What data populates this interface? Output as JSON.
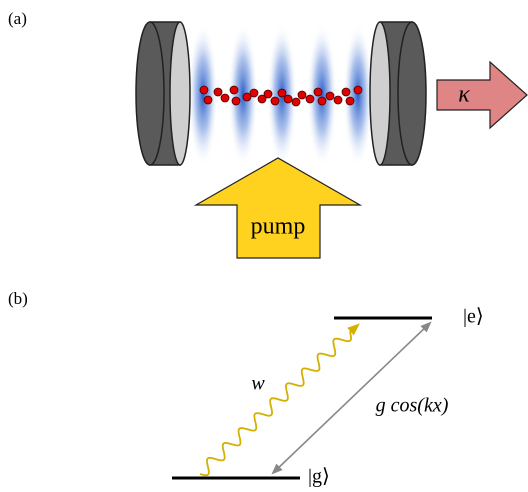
{
  "panel_a": {
    "label": "(a)",
    "pump": "pump",
    "decay": "κ"
  },
  "panel_b": {
    "label": "(b)",
    "excited": "|e⟩",
    "ground": "|g⟩",
    "drive": "w",
    "coupling": "g cos(kx)"
  }
}
